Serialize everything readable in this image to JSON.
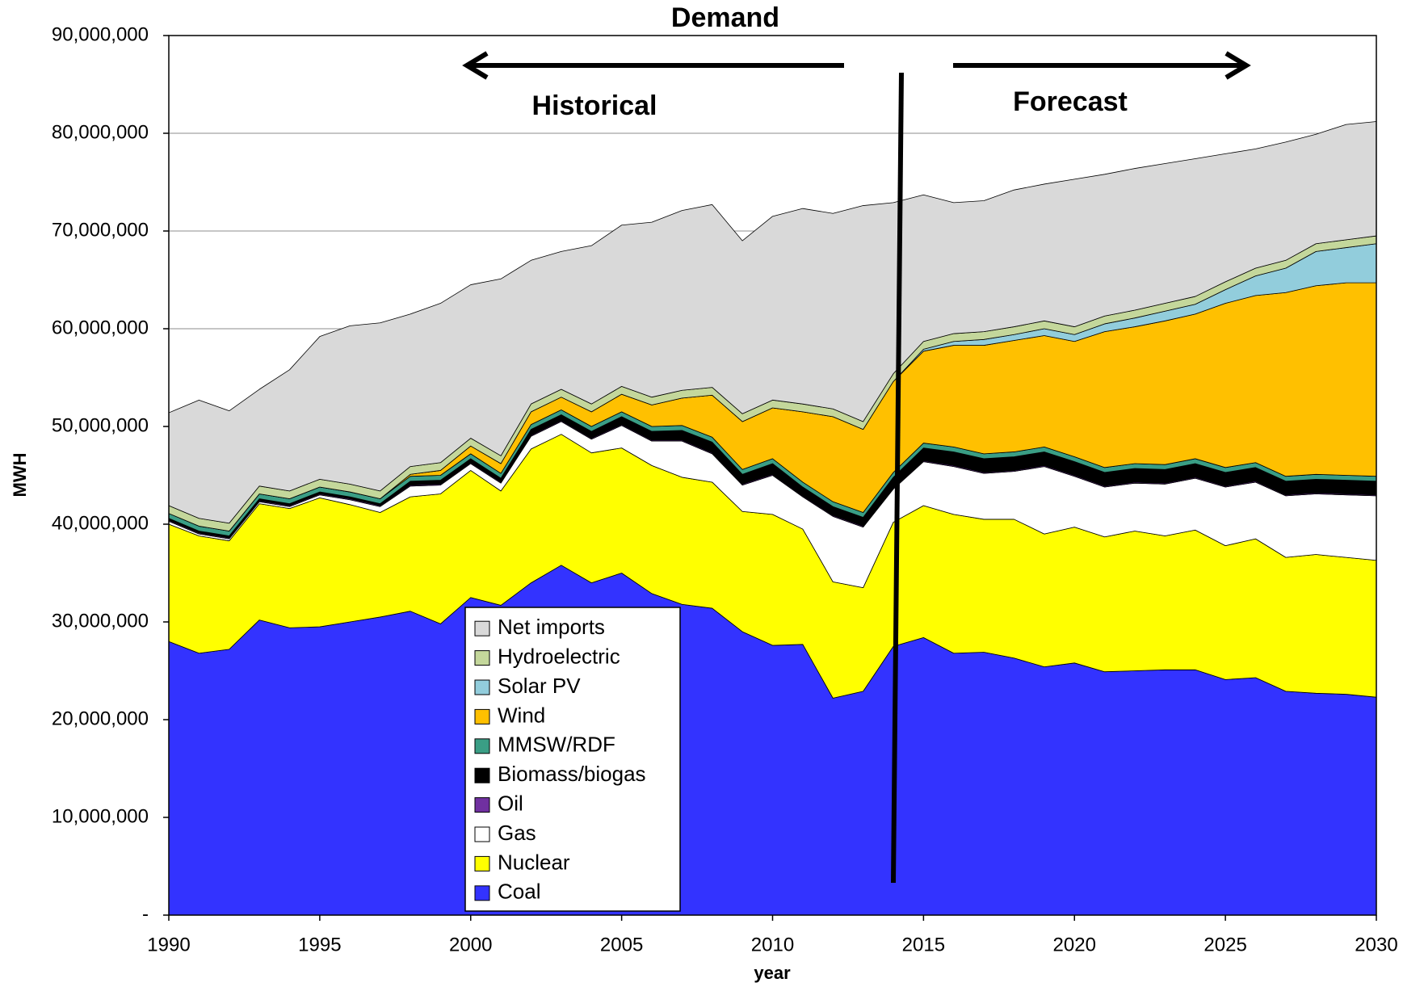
{
  "chart_data": {
    "type": "stacked_area",
    "title": "Demand",
    "annotations": [
      "Historical",
      "Forecast"
    ],
    "y_label": "MWH",
    "x_label": "year",
    "x": [
      1990,
      1991,
      1992,
      1993,
      1994,
      1995,
      1996,
      1997,
      1998,
      1999,
      2000,
      2001,
      2002,
      2003,
      2004,
      2005,
      2006,
      2007,
      2008,
      2009,
      2010,
      2011,
      2012,
      2013,
      2014,
      2015,
      2016,
      2017,
      2018,
      2019,
      2020,
      2021,
      2022,
      2023,
      2024,
      2025,
      2026,
      2027,
      2028,
      2029,
      2030
    ],
    "xlim": [
      1990,
      2030
    ],
    "xticks": [
      1990,
      1995,
      2000,
      2005,
      2010,
      2015,
      2020,
      2025,
      2030
    ],
    "ylim": [
      0,
      90000000
    ],
    "yticks": [
      {
        "value": 0,
        "label": "-"
      },
      {
        "value": 10000000,
        "label": "10,000,000"
      },
      {
        "value": 20000000,
        "label": "20,000,000"
      },
      {
        "value": 30000000,
        "label": "30,000,000"
      },
      {
        "value": 40000000,
        "label": "40,000,000"
      },
      {
        "value": 50000000,
        "label": "50,000,000"
      },
      {
        "value": 60000000,
        "label": "60,000,000"
      },
      {
        "value": 70000000,
        "label": "70,000,000"
      },
      {
        "value": 80000000,
        "label": "80,000,000"
      },
      {
        "value": 90000000,
        "label": "90,000,000"
      }
    ],
    "grid": true,
    "legend": "lower center",
    "series": [
      {
        "name": "Coal",
        "color": "#3333ff",
        "values": [
          28000000,
          26800000,
          27200000,
          30200000,
          29400000,
          29500000,
          30000000,
          30500000,
          31100000,
          29800000,
          32500000,
          31700000,
          34000000,
          35800000,
          34000000,
          35000000,
          32900000,
          31800000,
          31400000,
          29000000,
          27600000,
          27700000,
          22200000,
          22900000,
          27500000,
          28400000,
          26800000,
          26900000,
          26300000,
          25400000,
          25800000,
          24900000,
          25000000,
          25100000,
          25100000,
          24100000,
          24300000,
          22900000,
          22700000,
          22600000,
          22300000
        ]
      },
      {
        "name": "Nuclear",
        "color": "#ffff00",
        "values": [
          12000000,
          12000000,
          11100000,
          11900000,
          12200000,
          13200000,
          12000000,
          10700000,
          11700000,
          13300000,
          13000000,
          11700000,
          13700000,
          13400000,
          13300000,
          12800000,
          13100000,
          13000000,
          12900000,
          12300000,
          13400000,
          11800000,
          11900000,
          10600000,
          12700000,
          13500000,
          14200000,
          13600000,
          14200000,
          13600000,
          13900000,
          13800000,
          14300000,
          13700000,
          14300000,
          13700000,
          14200000,
          13700000,
          14200000,
          14000000,
          14000000
        ]
      },
      {
        "name": "Gas",
        "color": "#ffffff",
        "values": [
          300000,
          200000,
          200000,
          200000,
          200000,
          300000,
          500000,
          600000,
          1100000,
          900000,
          700000,
          800000,
          1300000,
          1300000,
          1400000,
          2300000,
          2500000,
          3700000,
          2900000,
          2700000,
          4000000,
          3300000,
          6700000,
          6200000,
          3400000,
          4500000,
          4900000,
          4700000,
          4900000,
          6900000,
          5200000,
          5100000,
          4900000,
          5300000,
          5300000,
          6000000,
          5800000,
          6300000,
          6200000,
          6400000,
          6600000
        ]
      },
      {
        "name": "Oil",
        "color": "#7030a0",
        "values": [
          100000,
          100000,
          100000,
          100000,
          100000,
          100000,
          100000,
          100000,
          100000,
          100000,
          100000,
          100000,
          100000,
          100000,
          100000,
          100000,
          100000,
          100000,
          100000,
          100000,
          100000,
          100000,
          100000,
          100000,
          100000,
          100000,
          100000,
          100000,
          100000,
          100000,
          100000,
          100000,
          100000,
          100000,
          100000,
          100000,
          100000,
          100000,
          100000,
          100000,
          100000
        ]
      },
      {
        "name": "Biomass/biogas",
        "color": "#000000",
        "values": [
          200000,
          200000,
          200000,
          200000,
          200000,
          200000,
          200000,
          200000,
          400000,
          400000,
          400000,
          400000,
          600000,
          600000,
          700000,
          800000,
          900000,
          1000000,
          1100000,
          1000000,
          1100000,
          900000,
          900000,
          900000,
          1100000,
          1300000,
          1400000,
          1400000,
          1400000,
          1400000,
          1400000,
          1400000,
          1400000,
          1400000,
          1400000,
          1400000,
          1400000,
          1400000,
          1400000,
          1400000,
          1400000
        ]
      },
      {
        "name": "MMSW/RDF",
        "color": "#3a9e85",
        "values": [
          500000,
          500000,
          500000,
          500000,
          500000,
          500000,
          500000,
          500000,
          500000,
          500000,
          500000,
          500000,
          500000,
          500000,
          500000,
          500000,
          500000,
          500000,
          500000,
          500000,
          500000,
          500000,
          500000,
          500000,
          500000,
          500000,
          500000,
          500000,
          500000,
          500000,
          500000,
          500000,
          500000,
          500000,
          500000,
          500000,
          500000,
          500000,
          500000,
          500000,
          500000
        ]
      },
      {
        "name": "Wind",
        "color": "#ffc000",
        "values": [
          0,
          0,
          0,
          0,
          0,
          0,
          0,
          0,
          200000,
          500000,
          800000,
          1000000,
          1300000,
          1300000,
          1500000,
          1800000,
          2200000,
          2800000,
          4300000,
          4900000,
          5200000,
          7200000,
          8700000,
          8500000,
          9300000,
          9400000,
          10400000,
          11100000,
          11400000,
          11400000,
          11800000,
          13900000,
          14000000,
          14700000,
          14800000,
          16800000,
          17100000,
          18800000,
          19300000,
          19700000,
          19800000
        ]
      },
      {
        "name": "Solar PV",
        "color": "#92cddc",
        "values": [
          0,
          0,
          0,
          0,
          0,
          0,
          0,
          0,
          0,
          0,
          0,
          0,
          0,
          0,
          0,
          0,
          0,
          0,
          0,
          0,
          0,
          0,
          0,
          0,
          0,
          200000,
          400000,
          600000,
          600000,
          700000,
          700000,
          800000,
          900000,
          1000000,
          1000000,
          1400000,
          2000000,
          2500000,
          3500000,
          3600000,
          4000000
        ]
      },
      {
        "name": "Hydroelectric",
        "color": "#c4d79b",
        "values": [
          800000,
          800000,
          800000,
          800000,
          800000,
          800000,
          800000,
          800000,
          800000,
          800000,
          800000,
          800000,
          800000,
          800000,
          800000,
          800000,
          800000,
          800000,
          800000,
          800000,
          800000,
          800000,
          800000,
          800000,
          800000,
          800000,
          800000,
          800000,
          800000,
          800000,
          800000,
          800000,
          800000,
          800000,
          800000,
          800000,
          800000,
          800000,
          800000,
          800000,
          800000
        ]
      },
      {
        "name": "Net imports",
        "color": "#d9d9d9",
        "values": [
          9500000,
          12100000,
          11500000,
          9900000,
          12400000,
          14600000,
          16200000,
          17200000,
          15600000,
          16300000,
          15700000,
          18100000,
          14700000,
          14100000,
          16200000,
          16500000,
          17900000,
          18400000,
          18700000,
          17700000,
          18800000,
          20000000,
          20000000,
          22100000,
          17500000,
          15000000,
          13400000,
          13400000,
          14000000,
          14000000,
          15100000,
          14500000,
          14500000,
          14300000,
          14100000,
          13100000,
          12200000,
          12100000,
          11200000,
          11800000,
          11700000
        ]
      }
    ]
  }
}
